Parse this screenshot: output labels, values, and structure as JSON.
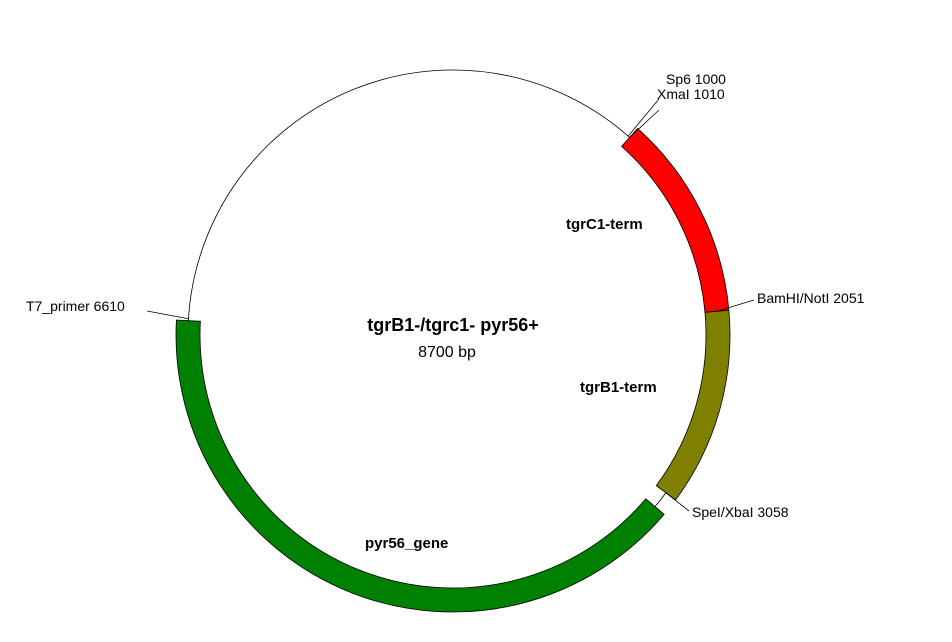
{
  "map": {
    "title": "tgrB1-/tgrc1- pyr56+",
    "size_label": "8700 bp",
    "total_bp": 8700
  },
  "features": [
    {
      "name": "tgrC1-term",
      "start": 1010,
      "end": 2051,
      "color": "#ff0000"
    },
    {
      "name": "tgrB1-term",
      "start": 2051,
      "end": 3058,
      "color": "#808000"
    },
    {
      "name": "pyr56_gene",
      "start": 3150,
      "end": 6600,
      "color": "#008000"
    }
  ],
  "sites": [
    {
      "label": "Sp6 1000",
      "position": 1000
    },
    {
      "label": "XmaI 1010",
      "position": 1010
    },
    {
      "label": "BamHI/NotI 2051",
      "position": 2051
    },
    {
      "label": "SpeI/XbaI 3058",
      "position": 3058
    },
    {
      "label": "T7_primer 6610",
      "position": 6610
    }
  ]
}
